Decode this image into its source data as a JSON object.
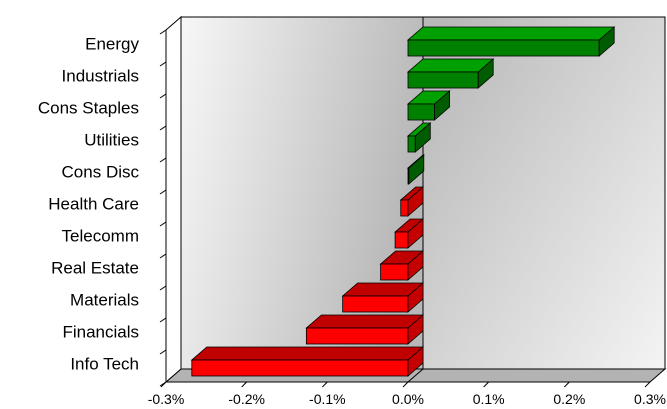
{
  "chart_data": {
    "type": "bar",
    "orientation": "horizontal",
    "style": "3d",
    "categories": [
      "Energy",
      "Industrials",
      "Cons Staples",
      "Utilities",
      "Cons Disc",
      "Health Care",
      "Telecomm",
      "Real Estate",
      "Materials",
      "Financials",
      "Info Tech"
    ],
    "values": [
      0.237,
      0.087,
      0.033,
      0.009,
      0.001,
      -0.009,
      -0.016,
      -0.034,
      -0.081,
      -0.126,
      -0.268
    ],
    "value_unit": "%",
    "xlim": [
      -0.3,
      0.3
    ],
    "xticks": [
      "-0.3%",
      "-0.2%",
      "-0.1%",
      "0.0%",
      "0.1%",
      "0.2%",
      "0.3%"
    ],
    "xtick_values": [
      -0.3,
      -0.2,
      -0.1,
      0.0,
      0.1,
      0.2,
      0.3
    ],
    "title": "",
    "xlabel": "",
    "ylabel": "",
    "grid": false,
    "legend": "none",
    "colors": {
      "positive": "#008000",
      "positive_top": "#00a000",
      "positive_side": "#005c00",
      "negative": "#ff0000",
      "negative_top": "#c00000",
      "negative_side": "#c40000",
      "plot_left": "#c0c0c0",
      "plot_right": "#f2f2f2",
      "floor": "#b3b3b3",
      "axis": "#000000"
    }
  }
}
